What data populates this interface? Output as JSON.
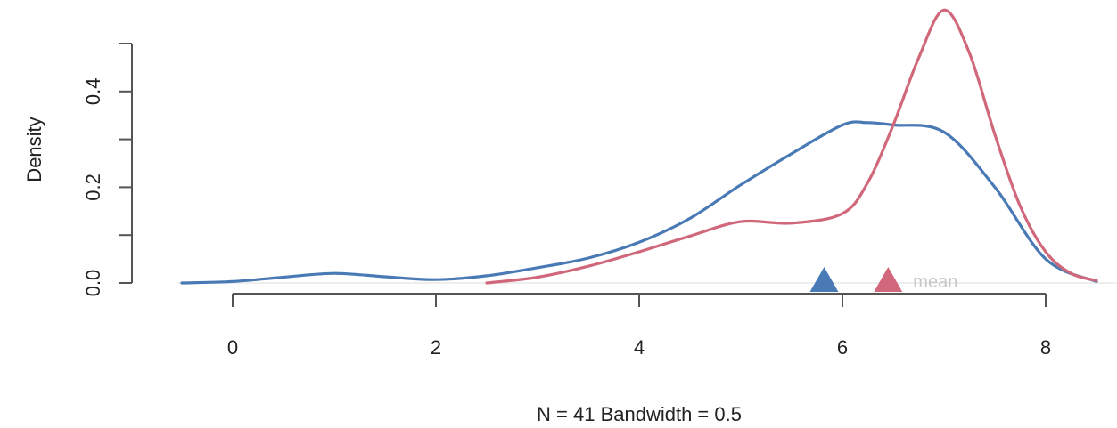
{
  "chart_data": {
    "type": "line",
    "title": "",
    "xlabel": "N = 41   Bandwidth = 0.5",
    "ylabel": "Density",
    "xlim": [
      -0.55,
      8.55
    ],
    "ylim": [
      0,
      0.57
    ],
    "x_ticks": [
      0,
      2,
      4,
      6,
      8
    ],
    "x_tick_labels": [
      "0",
      "2",
      "4",
      "6",
      "8"
    ],
    "y_ticks": [
      0,
      0.1,
      0.2,
      0.3,
      0.4,
      0.5
    ],
    "y_tick_labels": [
      "0.0",
      "",
      "0.2",
      "",
      "0.4",
      ""
    ],
    "grid": false,
    "series": [
      {
        "color": "#4a7ab5",
        "x": [
          -0.5,
          0,
          0.5,
          1,
          1.5,
          2,
          2.5,
          3,
          3.5,
          4,
          4.5,
          5,
          5.5,
          6,
          6.25,
          6.5,
          7,
          7.5,
          8,
          8.5
        ],
        "y": [
          0.0,
          0.003,
          0.012,
          0.02,
          0.013,
          0.007,
          0.015,
          0.032,
          0.052,
          0.085,
          0.135,
          0.205,
          0.27,
          0.33,
          0.335,
          0.33,
          0.315,
          0.2,
          0.05,
          0.003
        ],
        "mean": 5.82
      },
      {
        "color": "#d0677a",
        "x": [
          2.5,
          3,
          3.5,
          4,
          4.5,
          5,
          5.5,
          6,
          6.25,
          6.5,
          6.75,
          7,
          7.25,
          7.5,
          7.75,
          8,
          8.25,
          8.5
        ],
        "y": [
          0.0,
          0.012,
          0.035,
          0.065,
          0.098,
          0.128,
          0.125,
          0.145,
          0.21,
          0.33,
          0.47,
          0.57,
          0.48,
          0.31,
          0.16,
          0.065,
          0.02,
          0.005
        ],
        "mean": 6.45
      }
    ],
    "annotations": [
      {
        "text": "mean"
      }
    ]
  }
}
